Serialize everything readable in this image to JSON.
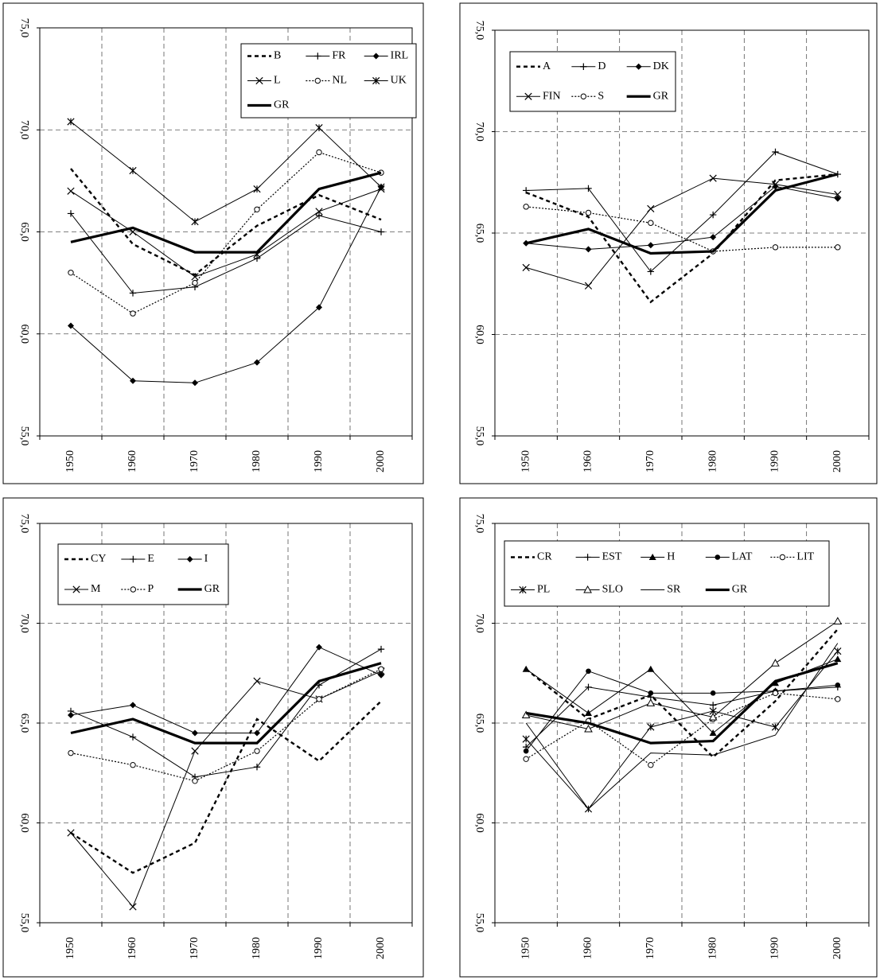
{
  "chart_data": [
    {
      "type": "line",
      "x": [
        1950,
        1960,
        1970,
        1980,
        1990,
        2000
      ],
      "ylim": [
        55.0,
        75.0
      ],
      "yticks": [
        "55,0",
        "60,0",
        "65,0",
        "70,0",
        "75,0"
      ],
      "grid": true,
      "legend_position": "top-right",
      "legend_rows": [
        [
          "B",
          "FR",
          "IRL"
        ],
        [
          "L",
          "NL",
          "UK"
        ],
        [
          "GR"
        ]
      ],
      "series": [
        {
          "name": "B",
          "style": "dashed-bold",
          "marker": "none",
          "values": [
            68.1,
            64.4,
            62.9,
            65.3,
            66.8,
            65.6
          ]
        },
        {
          "name": "FR",
          "style": "solid",
          "marker": "plus",
          "values": [
            65.9,
            62.0,
            62.3,
            63.7,
            65.8,
            65.0
          ]
        },
        {
          "name": "IRL",
          "style": "solid",
          "marker": "diamond",
          "values": [
            60.4,
            57.7,
            57.6,
            58.6,
            61.3,
            67.2
          ]
        },
        {
          "name": "L",
          "style": "solid",
          "marker": "x",
          "values": [
            67.0,
            65.0,
            62.8,
            63.9,
            66.0,
            67.1
          ]
        },
        {
          "name": "NL",
          "style": "dotted",
          "marker": "circle",
          "values": [
            63.0,
            61.0,
            62.5,
            66.1,
            68.9,
            67.9
          ]
        },
        {
          "name": "UK",
          "style": "solid",
          "marker": "star",
          "values": [
            70.4,
            68.0,
            65.5,
            67.1,
            70.1,
            67.2
          ]
        },
        {
          "name": "GR",
          "style": "bold",
          "marker": "none",
          "values": [
            64.5,
            65.2,
            64.0,
            64.0,
            67.1,
            67.9
          ]
        }
      ]
    },
    {
      "type": "line",
      "x": [
        1950,
        1960,
        1970,
        1980,
        1990,
        2000
      ],
      "ylim": [
        55.0,
        75.0
      ],
      "yticks": [
        "55,0",
        "60,0",
        "65,0",
        "70,0",
        "75,0"
      ],
      "grid": true,
      "legend_position": "top-left",
      "legend_rows": [
        [
          "A",
          "D",
          "DK"
        ],
        [
          "FIN",
          "S",
          "GR"
        ]
      ],
      "series": [
        {
          "name": "A",
          "style": "dashed-bold",
          "marker": "none",
          "values": [
            67.0,
            65.8,
            61.6,
            64.0,
            67.6,
            67.9
          ]
        },
        {
          "name": "D",
          "style": "solid",
          "marker": "plus",
          "values": [
            67.1,
            67.2,
            63.1,
            65.9,
            69.0,
            67.9
          ]
        },
        {
          "name": "DK",
          "style": "solid",
          "marker": "diamond",
          "values": [
            64.5,
            64.2,
            64.4,
            64.8,
            67.3,
            66.7
          ]
        },
        {
          "name": "FIN",
          "style": "solid",
          "marker": "x",
          "values": [
            63.3,
            62.4,
            66.2,
            67.7,
            67.4,
            66.9
          ]
        },
        {
          "name": "S",
          "style": "dotted",
          "marker": "circle",
          "values": [
            66.3,
            66.0,
            65.5,
            64.1,
            64.3,
            64.3
          ]
        },
        {
          "name": "GR",
          "style": "bold",
          "marker": "none",
          "values": [
            64.5,
            65.2,
            64.0,
            64.1,
            67.1,
            67.9
          ]
        }
      ]
    },
    {
      "type": "line",
      "x": [
        1950,
        1960,
        1970,
        1980,
        1990,
        2000
      ],
      "ylim": [
        55.0,
        75.0
      ],
      "yticks": [
        "55,0",
        "60,0",
        "65,0",
        "70,0",
        "75,0"
      ],
      "grid": true,
      "legend_position": "top-left",
      "legend_rows": [
        [
          "CY",
          "E",
          "I"
        ],
        [
          "M",
          "P",
          "GR"
        ]
      ],
      "series": [
        {
          "name": "CY",
          "style": "dashed-bold",
          "marker": "none",
          "values": [
            59.5,
            57.5,
            59.0,
            65.2,
            63.1,
            66.1
          ]
        },
        {
          "name": "E",
          "style": "solid",
          "marker": "plus",
          "values": [
            65.6,
            64.3,
            62.3,
            62.8,
            66.9,
            68.7
          ]
        },
        {
          "name": "I",
          "style": "solid",
          "marker": "diamond",
          "values": [
            65.4,
            65.9,
            64.5,
            64.5,
            68.8,
            67.4
          ]
        },
        {
          "name": "M",
          "style": "solid",
          "marker": "x",
          "values": [
            59.5,
            55.8,
            63.6,
            67.1,
            66.2,
            67.6
          ]
        },
        {
          "name": "P",
          "style": "dotted",
          "marker": "circle",
          "values": [
            63.5,
            62.9,
            62.1,
            63.6,
            66.2,
            67.7
          ]
        },
        {
          "name": "GR",
          "style": "bold",
          "marker": "none",
          "values": [
            64.5,
            65.2,
            64.0,
            64.0,
            67.1,
            68.0
          ]
        }
      ]
    },
    {
      "type": "line",
      "x": [
        1950,
        1960,
        1970,
        1980,
        1990,
        2000
      ],
      "ylim": [
        55.0,
        75.0
      ],
      "yticks": [
        "55,0",
        "60,0",
        "65,0",
        "70,0",
        "75,0"
      ],
      "grid": true,
      "legend_position": "top",
      "legend_rows": [
        [
          "CR",
          "EST",
          "H",
          "LAT",
          "LIT"
        ],
        [
          "PL",
          "SLO",
          "SR",
          "GR"
        ]
      ],
      "series": [
        {
          "name": "CR",
          "style": "dashed-bold",
          "marker": "none",
          "values": [
            67.7,
            65.2,
            66.4,
            63.3,
            66.1,
            69.7
          ]
        },
        {
          "name": "EST",
          "style": "solid",
          "marker": "plus",
          "values": [
            63.8,
            66.8,
            66.3,
            65.9,
            66.6,
            66.8
          ]
        },
        {
          "name": "H",
          "style": "solid",
          "marker": "triangle",
          "values": [
            67.7,
            65.5,
            67.7,
            64.5,
            67.0,
            68.2
          ]
        },
        {
          "name": "LAT",
          "style": "solid",
          "marker": "dot",
          "values": [
            63.6,
            67.6,
            66.5,
            66.5,
            66.6,
            66.9
          ]
        },
        {
          "name": "LIT",
          "style": "dotted",
          "marker": "circle",
          "values": [
            63.2,
            65.1,
            62.9,
            65.2,
            66.5,
            66.2
          ]
        },
        {
          "name": "PL",
          "style": "solid",
          "marker": "star",
          "values": [
            64.2,
            60.7,
            64.8,
            65.6,
            64.8,
            68.6
          ]
        },
        {
          "name": "SLO",
          "style": "solid",
          "marker": "triangle-open",
          "values": [
            65.4,
            64.7,
            66.0,
            65.3,
            68.0,
            70.1
          ]
        },
        {
          "name": "SR",
          "style": "solid",
          "marker": "none",
          "values": [
            65.0,
            60.7,
            63.5,
            63.4,
            64.4,
            69.0
          ]
        },
        {
          "name": "GR",
          "style": "bold",
          "marker": "none",
          "values": [
            65.5,
            65.0,
            64.0,
            64.1,
            67.1,
            68.0
          ]
        }
      ]
    }
  ]
}
